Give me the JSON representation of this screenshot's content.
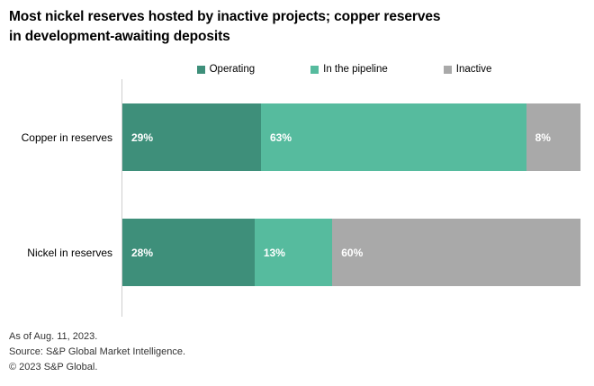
{
  "title": "Most nickel reserves hosted by inactive projects; copper reserves\nin development-awaiting deposits",
  "colors": {
    "operating": "#3e8f7a",
    "in_the_pipeline": "#56bb9e",
    "inactive": "#a9a9a9",
    "axis_line": "#cfcfcf",
    "bar_label_text": "#ffffff"
  },
  "chart_data": {
    "type": "bar",
    "orientation": "horizontal-stacked",
    "title": "Most nickel reserves hosted by inactive projects; copper reserves in development-awaiting deposits",
    "categories": [
      "Copper in reserves",
      "Nickel in reserves"
    ],
    "series": [
      {
        "name": "Operating",
        "color": "#3e8f7a",
        "values": [
          29,
          28
        ],
        "labels": [
          "29%",
          "28%"
        ]
      },
      {
        "name": "In the pipeline",
        "color": "#56bb9e",
        "values": [
          63,
          13
        ],
        "labels": [
          "63%",
          "13%"
        ]
      },
      {
        "name": "Inactive",
        "color": "#a9a9a9",
        "values": [
          8,
          60
        ],
        "labels": [
          "8%",
          "60%"
        ]
      }
    ],
    "xlim": [
      0,
      100
    ],
    "unit": "%",
    "grid": false,
    "legend_position": "top"
  },
  "footer": {
    "as_of": "As of Aug. 11, 2023.",
    "source": "Source: S&P Global Market Intelligence.",
    "copyright": "© 2023 S&P Global."
  }
}
